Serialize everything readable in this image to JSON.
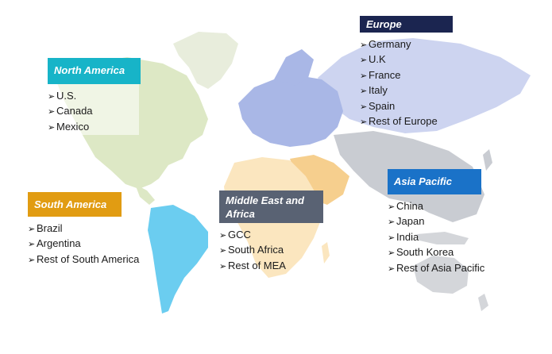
{
  "colors": {
    "north_america_header": "#17b4c8",
    "europe_header": "#1b2550",
    "south_america_header": "#e19c12",
    "middle_east_header": "#596273",
    "asia_pacific_header": "#1a72c8",
    "north_america_land": "#dde8c5",
    "greenland_land": "#e8eddc",
    "south_america_land": "#6bcdf0",
    "europe_land": "#a9b7e6",
    "russia_land": "#cdd4f0",
    "asia_land": "#c9ccd2",
    "africa_land": "#fbe6bf",
    "middle_east_land": "#f6cf8e",
    "oceania_land": "#d4d6da"
  },
  "regions": {
    "north_america": {
      "title": "North America",
      "items": [
        "U.S.",
        "Canada",
        "Mexico"
      ]
    },
    "europe": {
      "title": "Europe",
      "items": [
        "Germany",
        "U.K",
        "France",
        "Italy",
        "Spain",
        "Rest of Europe"
      ]
    },
    "south_america": {
      "title": "South America",
      "items": [
        "Brazil",
        "Argentina",
        "Rest of South America"
      ]
    },
    "middle_east_africa": {
      "title": "Middle East and Africa",
      "items": [
        "GCC",
        "South Africa",
        "Rest of MEA"
      ]
    },
    "asia_pacific": {
      "title": "Asia Pacific",
      "items": [
        "China",
        "Japan",
        "India",
        "South Korea",
        "Rest of Asia Pacific"
      ]
    }
  }
}
